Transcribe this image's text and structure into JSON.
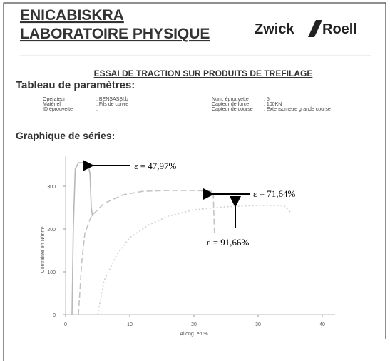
{
  "header": {
    "org": "ENICABISKRA",
    "lab": "LABORATOIRE PHYSIQUE",
    "logo_left": "Zwick",
    "logo_right": "Roell"
  },
  "report_title": "ESSAI DE TRACTION SUR PRODUITS DE TREFILAGE",
  "parameters": {
    "heading": "Tableau de paramètres:",
    "left": [
      [
        "Opérateur",
        ": BENSASSI.b"
      ],
      [
        "Matériel",
        ": Fils de cuivre"
      ],
      [
        "ID éprouvette",
        ":"
      ]
    ],
    "right": [
      [
        "Num. éprouvette",
        ": 5"
      ],
      [
        "Capteur de force",
        ": 100KN"
      ],
      [
        "Capteur de course",
        ": Extensometre grande course"
      ]
    ]
  },
  "chart_heading": "Graphique de séries:",
  "chart_data": {
    "type": "line",
    "x_label": "Allong. en %",
    "y_label": "Contrainte en N/mm²",
    "xlim": [
      0,
      42
    ],
    "ylim": [
      0,
      370
    ],
    "xticks": [
      0,
      10,
      20,
      30,
      40
    ],
    "yticks": [
      0,
      100,
      200,
      300
    ],
    "series": [
      {
        "color": "#b8b8b8",
        "style": "solid",
        "x": [
          1,
          1.2,
          1.5,
          2,
          3,
          3.5,
          3.8,
          4,
          4.2
        ],
        "values": [
          0,
          200,
          340,
          355,
          355,
          350,
          330,
          250,
          230
        ]
      },
      {
        "color": "#c4c4c4",
        "style": "dashed",
        "x": [
          2,
          2.5,
          3,
          4,
          6,
          9,
          12,
          16,
          20,
          23,
          23.2
        ],
        "values": [
          0,
          120,
          190,
          230,
          260,
          280,
          288,
          290,
          290,
          288,
          190
        ]
      },
      {
        "color": "#d0d0d0",
        "style": "dotted",
        "x": [
          5,
          6,
          8,
          10,
          13,
          16,
          20,
          25,
          30,
          34,
          35
        ],
        "values": [
          0,
          80,
          140,
          180,
          210,
          230,
          245,
          252,
          255,
          255,
          240
        ]
      }
    ],
    "annotations": [
      "ε = 47,97%",
      "ε = 71,64%",
      "ε = 91,66%"
    ]
  }
}
